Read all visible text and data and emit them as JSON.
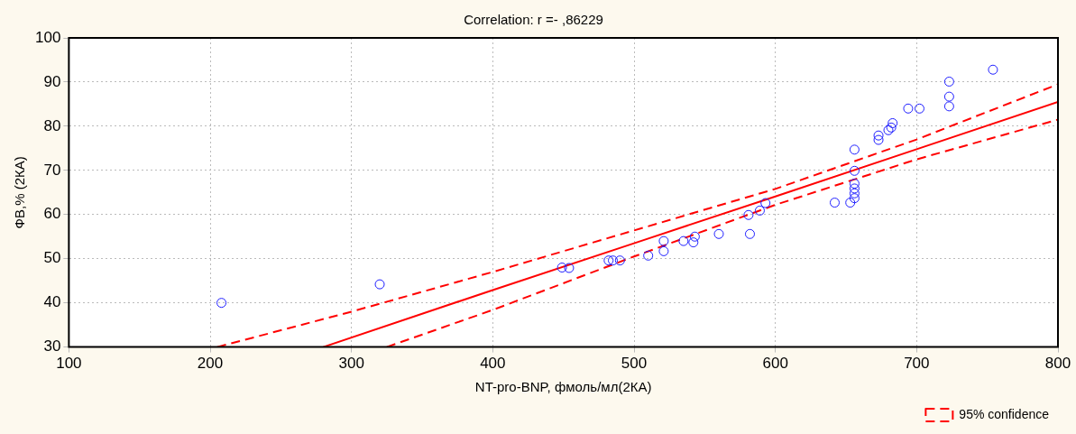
{
  "chart_data": {
    "type": "scatter",
    "title": "Correlation: r =- ,86229",
    "xlabel": "NT-pro-BNP, фмоль/мл(2КА)",
    "ylabel": "ФВ,% (2КА)",
    "xlim": [
      100,
      800
    ],
    "xticks": [
      100,
      200,
      300,
      400,
      500,
      600,
      700,
      800
    ],
    "ylim": [
      30,
      100
    ],
    "yticks": [
      30,
      40,
      50,
      60,
      70,
      80,
      90,
      100
    ],
    "grid": true,
    "legend": "bottom right",
    "series": [
      {
        "marker": "circle",
        "color": "#1f1fff",
        "x": [
          208,
          320,
          449,
          454,
          482,
          485,
          490,
          510,
          521,
          521,
          535,
          542,
          543,
          560,
          582,
          581,
          589,
          593,
          642,
          653,
          656,
          656,
          656,
          656,
          656,
          656,
          673,
          673,
          680,
          682,
          683,
          694,
          702,
          723,
          723,
          723,
          754
        ],
        "values": [
          40,
          44.2,
          48,
          47.9,
          49.6,
          49.6,
          49.6,
          50.7,
          51.7,
          54,
          54,
          53.7,
          55,
          55.6,
          55.6,
          59.9,
          60.9,
          62.6,
          62.7,
          62.7,
          63.7,
          64.8,
          65.9,
          67,
          69.9,
          74.7,
          76.9,
          77.9,
          79.1,
          79.7,
          80.7,
          84,
          84,
          84.5,
          86.7,
          90.1,
          92.8
        ]
      },
      {
        "type": "line",
        "color": "#ff0000",
        "line_style": "solid",
        "x": [
          280,
          400,
          500,
          600,
          700,
          800
        ],
        "values": [
          30,
          42.9,
          53.5,
          64.1,
          74.8,
          85.5
        ]
      },
      {
        "type": "line",
        "name": "95% confidence",
        "color": "#ff0000",
        "line_style": "dashed",
        "x": [
          205,
          300,
          400,
          500,
          600,
          700,
          800
        ],
        "values": [
          30,
          38,
          47,
          56.4,
          65.8,
          77,
          89.5
        ]
      },
      {
        "type": "line",
        "color": "#ff0000",
        "line_style": "dashed",
        "x": [
          325,
          400,
          500,
          600,
          700,
          800
        ],
        "values": [
          30,
          38.4,
          50.5,
          62.2,
          72.5,
          81.5
        ]
      }
    ]
  }
}
